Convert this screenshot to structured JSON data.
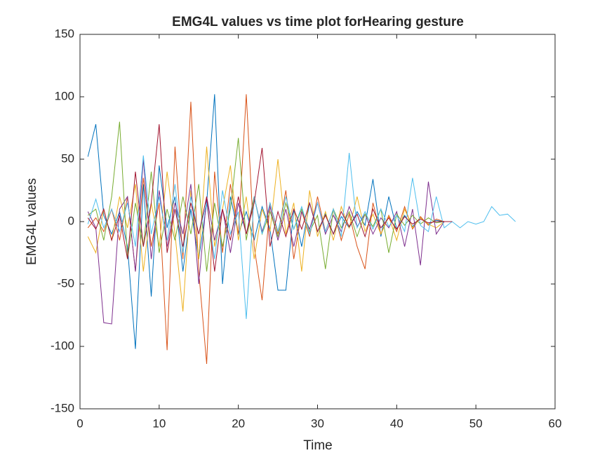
{
  "chart_data": {
    "type": "line",
    "title": "EMG4L values vs time plot forHearing gesture",
    "xlabel": "Time",
    "ylabel": "EMG4L values",
    "x": [
      1,
      2,
      3,
      4,
      5,
      6,
      7,
      8,
      9,
      10,
      11,
      12,
      13,
      14,
      15,
      16,
      17,
      18,
      19,
      20,
      21,
      22,
      23,
      24,
      25,
      26,
      27,
      28,
      29,
      30,
      31,
      32,
      33,
      34,
      35,
      36,
      37,
      38,
      39,
      40,
      41,
      42,
      43,
      44,
      45,
      46,
      47,
      48,
      49,
      50,
      51,
      52,
      53,
      54,
      55
    ],
    "xlim": [
      0,
      60
    ],
    "xticks": [
      0,
      10,
      20,
      30,
      40,
      50,
      60
    ],
    "ylim": [
      -150,
      150
    ],
    "yticks": [
      -150,
      -100,
      -50,
      0,
      50,
      100,
      150
    ],
    "series": [
      {
        "color": "#0072BD",
        "values": [
          52,
          78,
          5,
          -10,
          8,
          -20,
          -102,
          30,
          -60,
          45,
          -5,
          20,
          -40,
          10,
          -30,
          15,
          102,
          -50,
          20,
          -10,
          8,
          -15,
          12,
          -6,
          -55,
          -55,
          10,
          -20,
          15,
          -8,
          6,
          -10,
          4,
          -5,
          8,
          -3,
          34,
          -12,
          20,
          -6,
          5,
          -4,
          3,
          -2,
          1,
          0,
          0,
          null,
          null,
          null,
          null,
          null,
          null,
          null,
          null
        ]
      },
      {
        "color": "#D95319",
        "values": [
          -5,
          3,
          -8,
          10,
          -15,
          20,
          -40,
          35,
          -20,
          15,
          -103,
          60,
          -30,
          96,
          -40,
          -114,
          40,
          -25,
          30,
          -10,
          102,
          -20,
          -63,
          15,
          -10,
          25,
          -30,
          8,
          -12,
          20,
          -8,
          10,
          -15,
          6,
          -20,
          -38,
          15,
          -10,
          5,
          -8,
          12,
          -6,
          4,
          -3,
          2,
          0,
          0,
          null,
          null,
          null,
          null,
          null,
          null,
          null,
          null
        ]
      },
      {
        "color": "#EDB120",
        "values": [
          -12,
          -25,
          10,
          -15,
          20,
          -5,
          30,
          -40,
          15,
          -20,
          40,
          -10,
          -72,
          25,
          -30,
          60,
          -20,
          10,
          45,
          -15,
          20,
          -30,
          10,
          -8,
          50,
          -10,
          15,
          -40,
          25,
          -12,
          8,
          -15,
          12,
          -5,
          20,
          -8,
          6,
          -10,
          4,
          -15,
          10,
          -5,
          3,
          -2,
          -5,
          0,
          0,
          null,
          null,
          null,
          null,
          null,
          null,
          null,
          null
        ]
      },
      {
        "color": "#7E2F8E",
        "values": [
          8,
          -5,
          -81,
          -82,
          10,
          20,
          -40,
          50,
          -30,
          25,
          -20,
          15,
          -10,
          30,
          -50,
          20,
          -15,
          10,
          -25,
          15,
          -10,
          20,
          -8,
          12,
          -15,
          10,
          -20,
          8,
          -6,
          15,
          -10,
          5,
          -8,
          12,
          -4,
          6,
          -10,
          3,
          -5,
          8,
          -20,
          10,
          -35,
          32,
          -10,
          0,
          0,
          null,
          null,
          null,
          null,
          null,
          null,
          null,
          null
        ]
      },
      {
        "color": "#77AC30",
        "values": [
          5,
          10,
          -15,
          20,
          80,
          -30,
          15,
          -20,
          40,
          -25,
          10,
          -15,
          20,
          -10,
          30,
          -40,
          15,
          -20,
          10,
          67,
          -15,
          20,
          -10,
          8,
          -12,
          15,
          -6,
          10,
          -8,
          5,
          -38,
          10,
          -5,
          8,
          -12,
          6,
          -4,
          10,
          -25,
          6,
          -3,
          5,
          -2,
          3,
          -1,
          0,
          0,
          null,
          null,
          null,
          null,
          null,
          null,
          null,
          null
        ]
      },
      {
        "color": "#4DBEEE",
        "values": [
          -2,
          18,
          -5,
          10,
          -8,
          15,
          -20,
          53,
          -10,
          20,
          -15,
          30,
          -25,
          20,
          -10,
          15,
          -30,
          25,
          -10,
          8,
          -78,
          20,
          -10,
          15,
          -8,
          20,
          -6,
          12,
          -10,
          15,
          -8,
          10,
          -12,
          55,
          -5,
          8,
          -6,
          10,
          -4,
          5,
          -8,
          35,
          -3,
          -8,
          20,
          -5,
          0,
          -5,
          0,
          -2,
          0,
          12,
          5,
          6,
          0
        ]
      },
      {
        "color": "#A2142F",
        "values": [
          3,
          -6,
          10,
          -15,
          5,
          -30,
          40,
          -20,
          15,
          78,
          -25,
          10,
          -20,
          15,
          -10,
          20,
          -40,
          10,
          -15,
          20,
          -10,
          15,
          59,
          -20,
          8,
          -12,
          10,
          -6,
          15,
          -8,
          5,
          -10,
          8,
          -4,
          6,
          -12,
          10,
          -5,
          3,
          -6,
          4,
          -2,
          2,
          -1,
          0,
          0,
          0,
          null,
          null,
          null,
          null,
          null,
          null,
          null,
          null
        ]
      }
    ]
  }
}
